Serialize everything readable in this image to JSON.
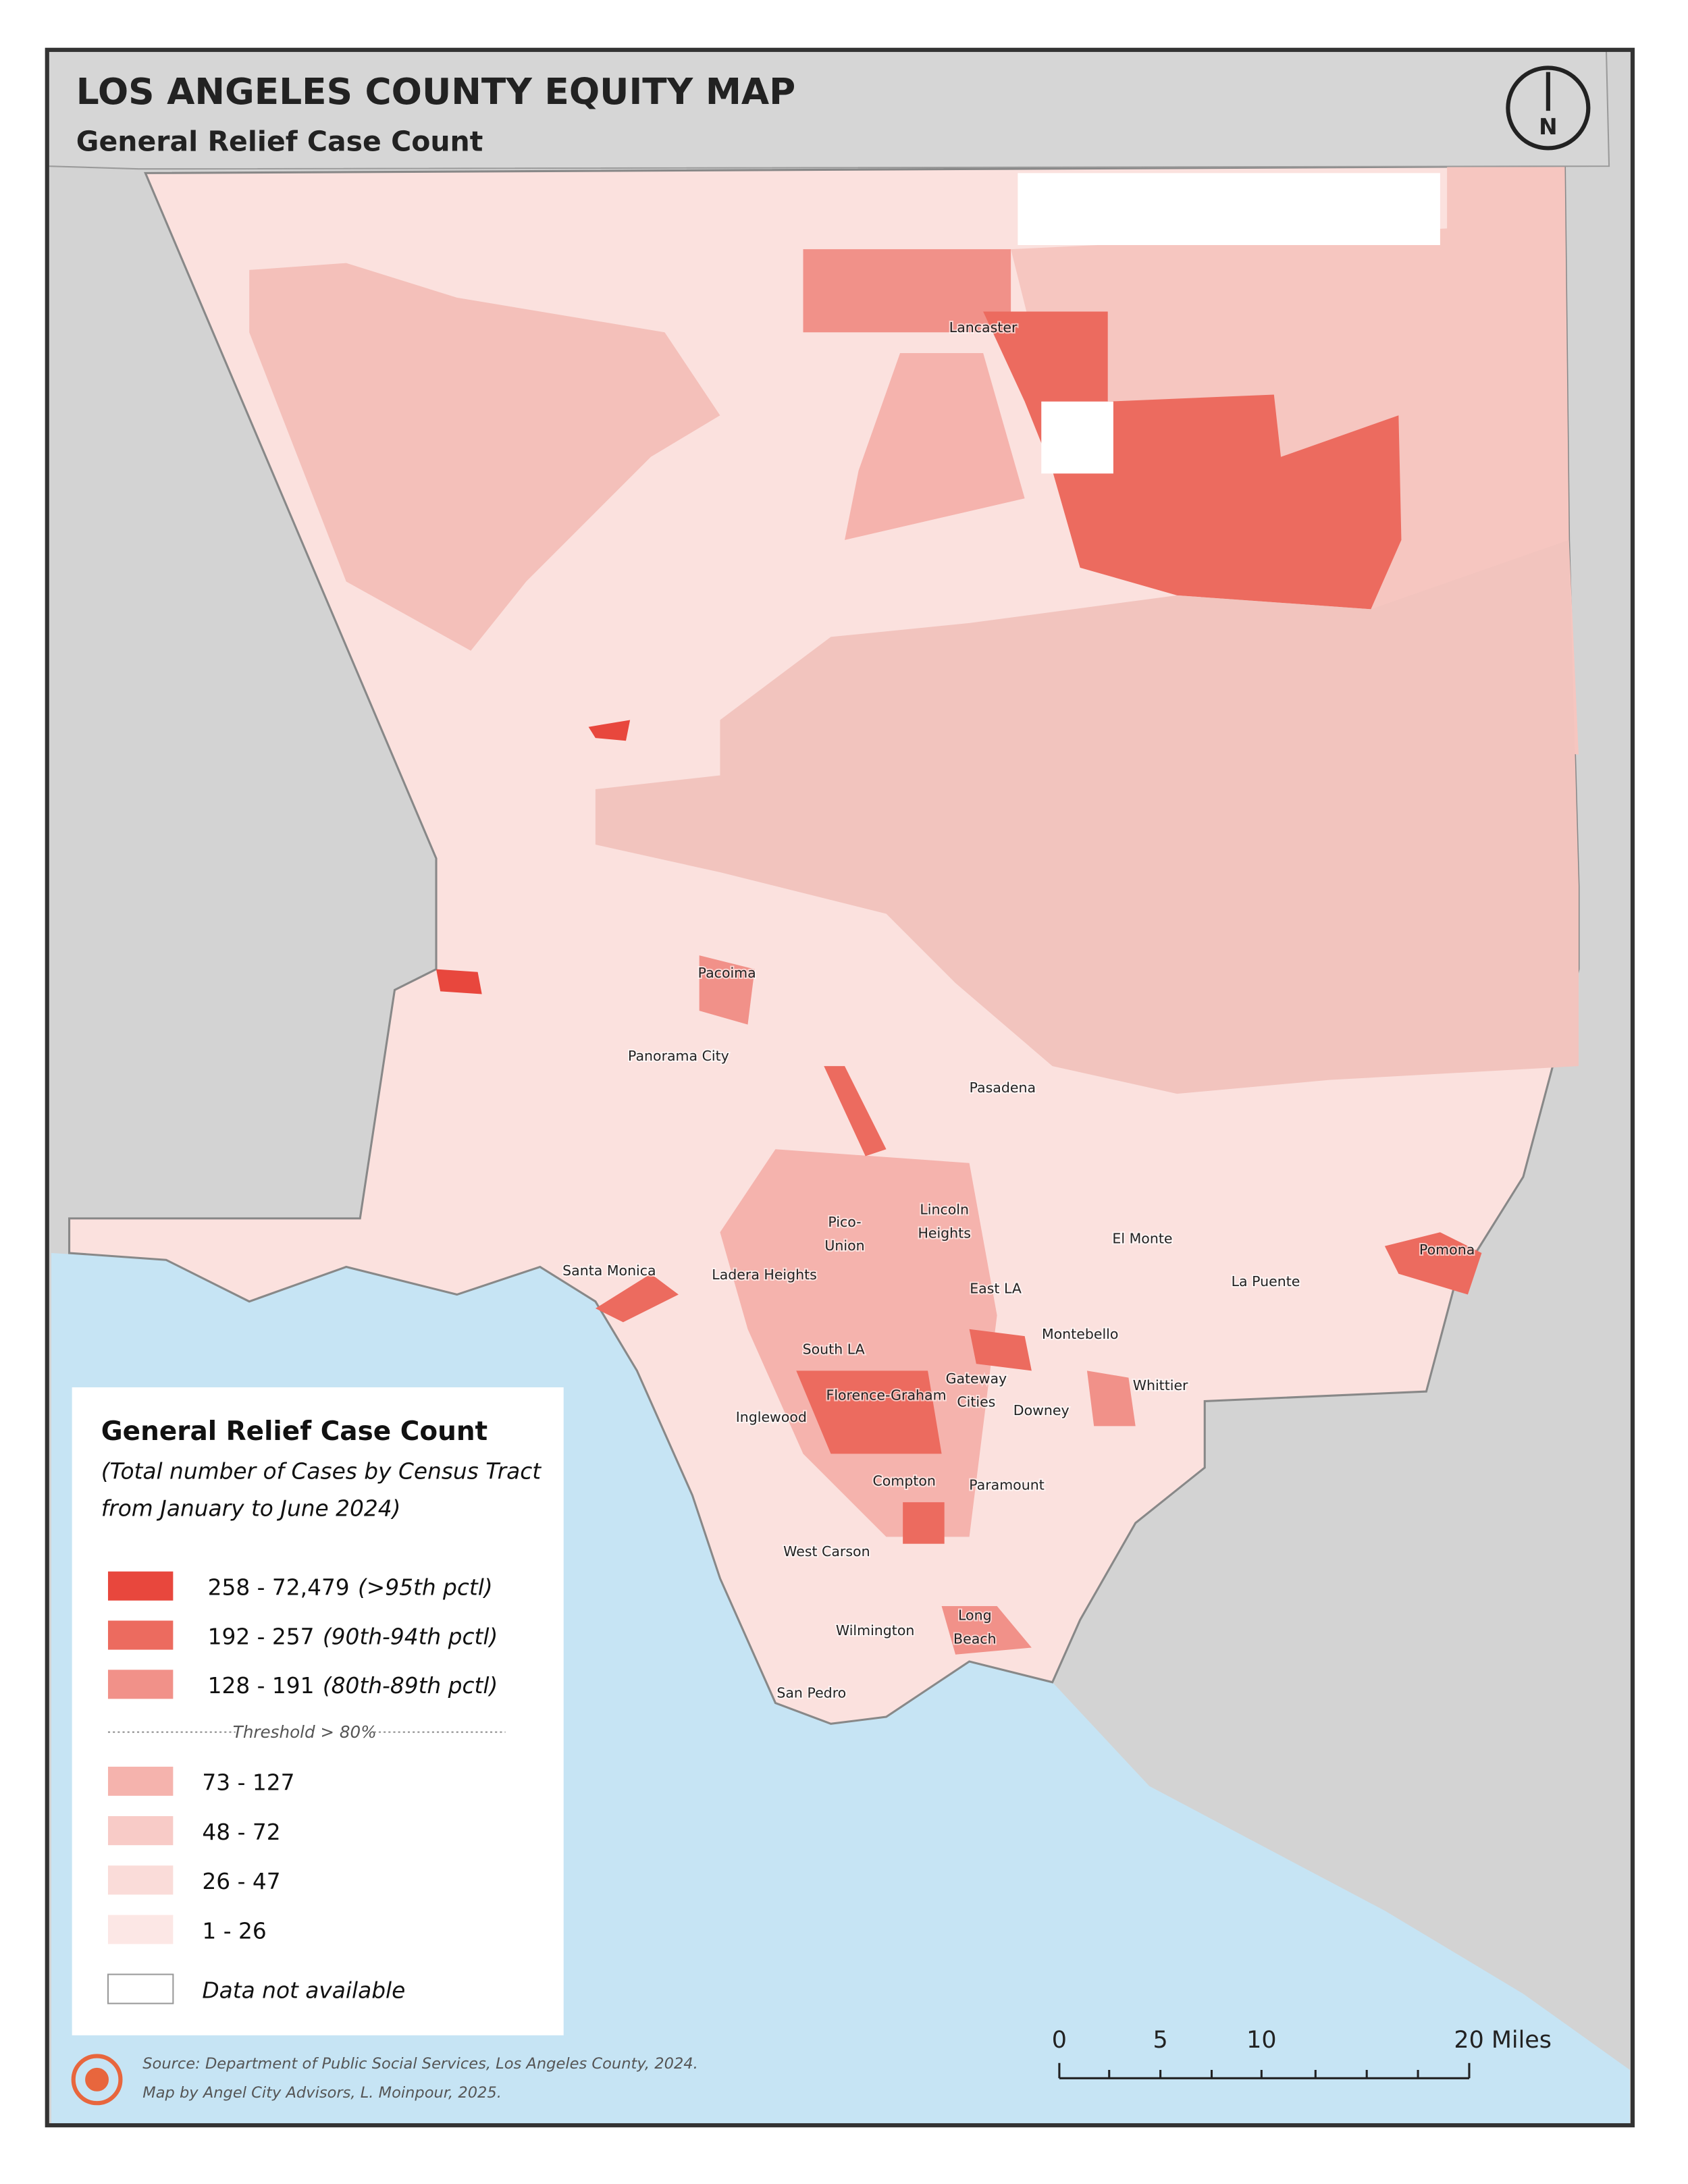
{
  "header": {
    "title": "LOS ANGELES COUNTY EQUITY MAP",
    "subtitle": "General Relief Case Count"
  },
  "north_arrow": "N",
  "places": [
    {
      "lines": [
        "Lancaster"
      ]
    },
    {
      "lines": [
        "Pacoima"
      ]
    },
    {
      "lines": [
        "Panorama City"
      ]
    },
    {
      "lines": [
        "Pasadena"
      ]
    },
    {
      "lines": [
        "Pico-",
        "Union"
      ]
    },
    {
      "lines": [
        "Lincoln",
        "Heights"
      ]
    },
    {
      "lines": [
        "El Monte"
      ]
    },
    {
      "lines": [
        "Santa Monica"
      ]
    },
    {
      "lines": [
        "Ladera Heights"
      ]
    },
    {
      "lines": [
        "Pomona"
      ]
    },
    {
      "lines": [
        "La Puente"
      ]
    },
    {
      "lines": [
        "East LA"
      ]
    },
    {
      "lines": [
        "Montebello"
      ]
    },
    {
      "lines": [
        "South LA"
      ]
    },
    {
      "lines": [
        "Gateway",
        "Cities"
      ]
    },
    {
      "lines": [
        "Florence-Graham"
      ]
    },
    {
      "lines": [
        "Whittier"
      ]
    },
    {
      "lines": [
        "Inglewood"
      ]
    },
    {
      "lines": [
        "Downey"
      ]
    },
    {
      "lines": [
        "Compton"
      ]
    },
    {
      "lines": [
        "Paramount"
      ]
    },
    {
      "lines": [
        "West Carson"
      ]
    },
    {
      "lines": [
        "Long",
        "Beach"
      ]
    },
    {
      "lines": [
        "Wilmington"
      ]
    },
    {
      "lines": [
        "San Pedro"
      ]
    }
  ],
  "legend": {
    "title": "General Relief Case Count",
    "subtitle": [
      "(Total number of Cases by Census Tract",
      "from January to June 2024)"
    ],
    "upper": [
      {
        "range": "258 - 72,479",
        "note": "(>95th pctl)",
        "color": "#e8473d"
      },
      {
        "range": "192 - 257",
        "note": "(90th-94th pctl)",
        "color": "#ec6b5f"
      },
      {
        "range": "128 - 191",
        "note": "(80th-89th pctl)",
        "color": "#f19189"
      }
    ],
    "threshold": "Threshold > 80%",
    "lower": [
      {
        "range": "73 - 127",
        "color": "#f5b3ad"
      },
      {
        "range": "48 -  72",
        "color": "#f8cbc7"
      },
      {
        "range": "26 - 47",
        "color": "#fadcd9"
      },
      {
        "range": "1 - 26",
        "color": "#fce7e5"
      }
    ],
    "na": {
      "label": "Data not available",
      "color": "#ffffff"
    }
  },
  "source": [
    "Source: Department of Public Social Services, Los Angeles County, 2024.",
    "Map by Angel City Advisors, L. Moinpour, 2025."
  ],
  "scale_bar": [
    "0",
    "5",
    "10",
    "20 Miles"
  ]
}
